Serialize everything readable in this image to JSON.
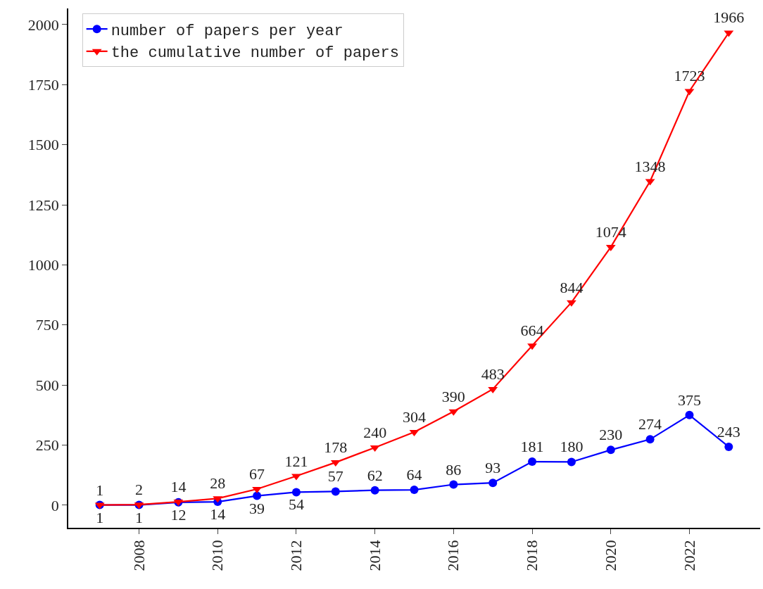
{
  "chart_data": {
    "type": "line",
    "x": [
      2007,
      2008,
      2009,
      2010,
      2011,
      2012,
      2013,
      2014,
      2015,
      2016,
      2017,
      2018,
      2019,
      2020,
      2021,
      2022,
      2023
    ],
    "series": [
      {
        "name": "number of papers per year",
        "color": "#0000ff",
        "marker": "circle",
        "values": [
          1,
          1,
          12,
          14,
          39,
          54,
          57,
          62,
          64,
          86,
          93,
          181,
          180,
          230,
          274,
          375,
          243
        ]
      },
      {
        "name": "the cumulative number of papers",
        "color": "#ff0000",
        "marker": "triangle",
        "values": [
          1,
          2,
          14,
          28,
          67,
          121,
          178,
          240,
          304,
          390,
          483,
          664,
          844,
          1074,
          1348,
          1723,
          1966
        ]
      }
    ],
    "xlim": [
      2006.2,
      2023.8
    ],
    "xticks": [
      2008,
      2010,
      2012,
      2014,
      2016,
      2018,
      2020,
      2022
    ],
    "ylim": [
      -94,
      2067
    ],
    "yticks": [
      0,
      250,
      500,
      750,
      1000,
      1250,
      1500,
      1750,
      2000
    ],
    "grid": false,
    "legend": "top left",
    "data_labels": true,
    "line_style": "solid"
  }
}
